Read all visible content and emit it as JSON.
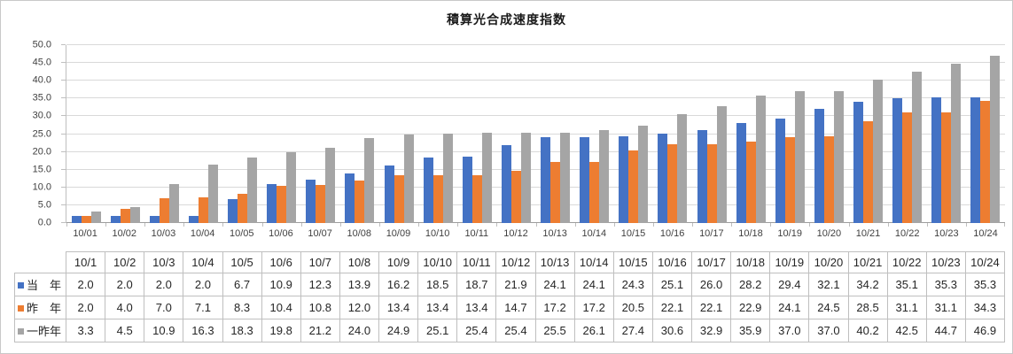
{
  "chart_data": {
    "type": "bar",
    "title": "積算光合成速度指数",
    "categories": [
      "10/01",
      "10/02",
      "10/03",
      "10/04",
      "10/05",
      "10/06",
      "10/07",
      "10/08",
      "10/09",
      "10/10",
      "10/11",
      "10/12",
      "10/13",
      "10/14",
      "10/15",
      "10/16",
      "10/17",
      "10/18",
      "10/19",
      "10/20",
      "10/21",
      "10/22",
      "10/23",
      "10/24"
    ],
    "table_categories": [
      "10/1",
      "10/2",
      "10/3",
      "10/4",
      "10/5",
      "10/6",
      "10/7",
      "10/8",
      "10/9",
      "10/10",
      "10/11",
      "10/12",
      "10/13",
      "10/14",
      "10/15",
      "10/16",
      "10/17",
      "10/18",
      "10/19",
      "10/20",
      "10/21",
      "10/22",
      "10/23",
      "10/24"
    ],
    "series": [
      {
        "name": "当　年",
        "color": "#4472C4",
        "values": [
          2.0,
          2.0,
          2.0,
          2.0,
          6.7,
          10.9,
          12.3,
          13.9,
          16.2,
          18.5,
          18.7,
          21.9,
          24.1,
          24.1,
          24.3,
          25.1,
          26.0,
          28.2,
          29.4,
          32.1,
          34.2,
          35.1,
          35.3,
          35.3
        ]
      },
      {
        "name": "昨　年",
        "color": "#ED7D31",
        "values": [
          2.0,
          4.0,
          7.0,
          7.1,
          8.3,
          10.4,
          10.8,
          12.0,
          13.4,
          13.4,
          13.4,
          14.7,
          17.2,
          17.2,
          20.5,
          22.1,
          22.1,
          22.9,
          24.1,
          24.5,
          28.5,
          31.1,
          31.1,
          34.3
        ]
      },
      {
        "name": "一昨年",
        "color": "#A5A5A5",
        "values": [
          3.3,
          4.5,
          10.9,
          16.3,
          18.3,
          19.8,
          21.2,
          24.0,
          24.9,
          25.1,
          25.4,
          25.4,
          25.5,
          26.1,
          27.4,
          30.6,
          32.9,
          35.9,
          37.0,
          37.0,
          40.2,
          42.5,
          44.7,
          46.9
        ]
      }
    ],
    "ylim": [
      0,
      50
    ],
    "yticks": [
      "0.0",
      "5.0",
      "10.0",
      "15.0",
      "20.0",
      "25.0",
      "30.0",
      "35.0",
      "40.0",
      "45.0",
      "50.0"
    ],
    "grid": true,
    "legend_position": "data-table-left",
    "value_decimals": 1
  }
}
